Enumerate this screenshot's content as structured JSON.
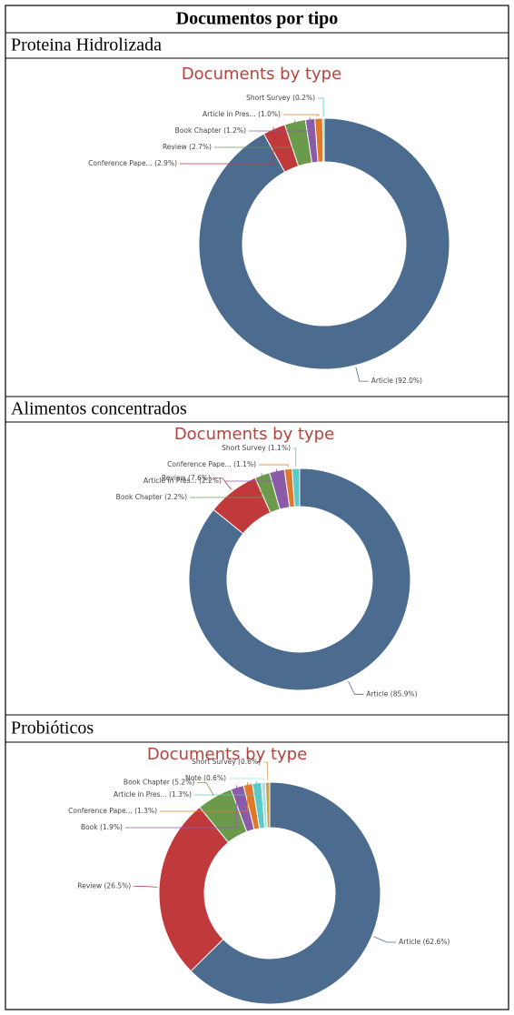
{
  "table": {
    "title": "Documentos por tipo",
    "sections": [
      "Proteina Hidrolizada",
      "Alimentos concentrados",
      "Probióticos"
    ]
  },
  "chart_data": [
    {
      "type": "donut",
      "title": "Documents by type",
      "values": [
        92.0,
        2.9,
        2.7,
        1.2,
        1.0,
        0.2
      ],
      "value_labels": [
        "Article (92.0%)",
        "Conference Pape... (2.9%)",
        "Review (2.7%)",
        "Book Chapter (1.2%)",
        "Article in Pres... (1.0%)",
        "Short Survey (0.2%)"
      ],
      "colors": [
        "#4b6b8f",
        "#c0393b",
        "#6b9a4b",
        "#8a5ca8",
        "#e0782a",
        "#5cc9c9"
      ]
    },
    {
      "type": "donut",
      "title": "Documents by type",
      "values": [
        85.9,
        7.6,
        2.2,
        2.2,
        1.1,
        1.1
      ],
      "value_labels": [
        "Article (85.9%)",
        "Review (7.6%)",
        "Book Chapter (2.2%)",
        "Article in Pres... (2.2%)",
        "Conference Pape... (1.1%)",
        "Short Survey (1.1%)"
      ],
      "colors": [
        "#4b6b8f",
        "#c0393b",
        "#6b9a4b",
        "#8a5ca8",
        "#e0782a",
        "#5cc9c9"
      ]
    },
    {
      "type": "donut",
      "title": "Documents by type",
      "values": [
        62.6,
        26.5,
        5.2,
        1.9,
        1.3,
        1.3,
        0.6,
        0.6
      ],
      "value_labels": [
        "Article (62.6%)",
        "Review (26.5%)",
        "Book Chapter (5.2%)",
        "Book (1.9%)",
        "Conference Pape... (1.3%)",
        "Article in Pres... (1.3%)",
        "Note (0.6%)",
        "Short Survey (0.6%)"
      ],
      "colors": [
        "#4b6b8f",
        "#c0393b",
        "#6b9a4b",
        "#8a5ca8",
        "#e0782a",
        "#5cc9c9",
        "#a8e0e0",
        "#c9a24a"
      ]
    }
  ]
}
